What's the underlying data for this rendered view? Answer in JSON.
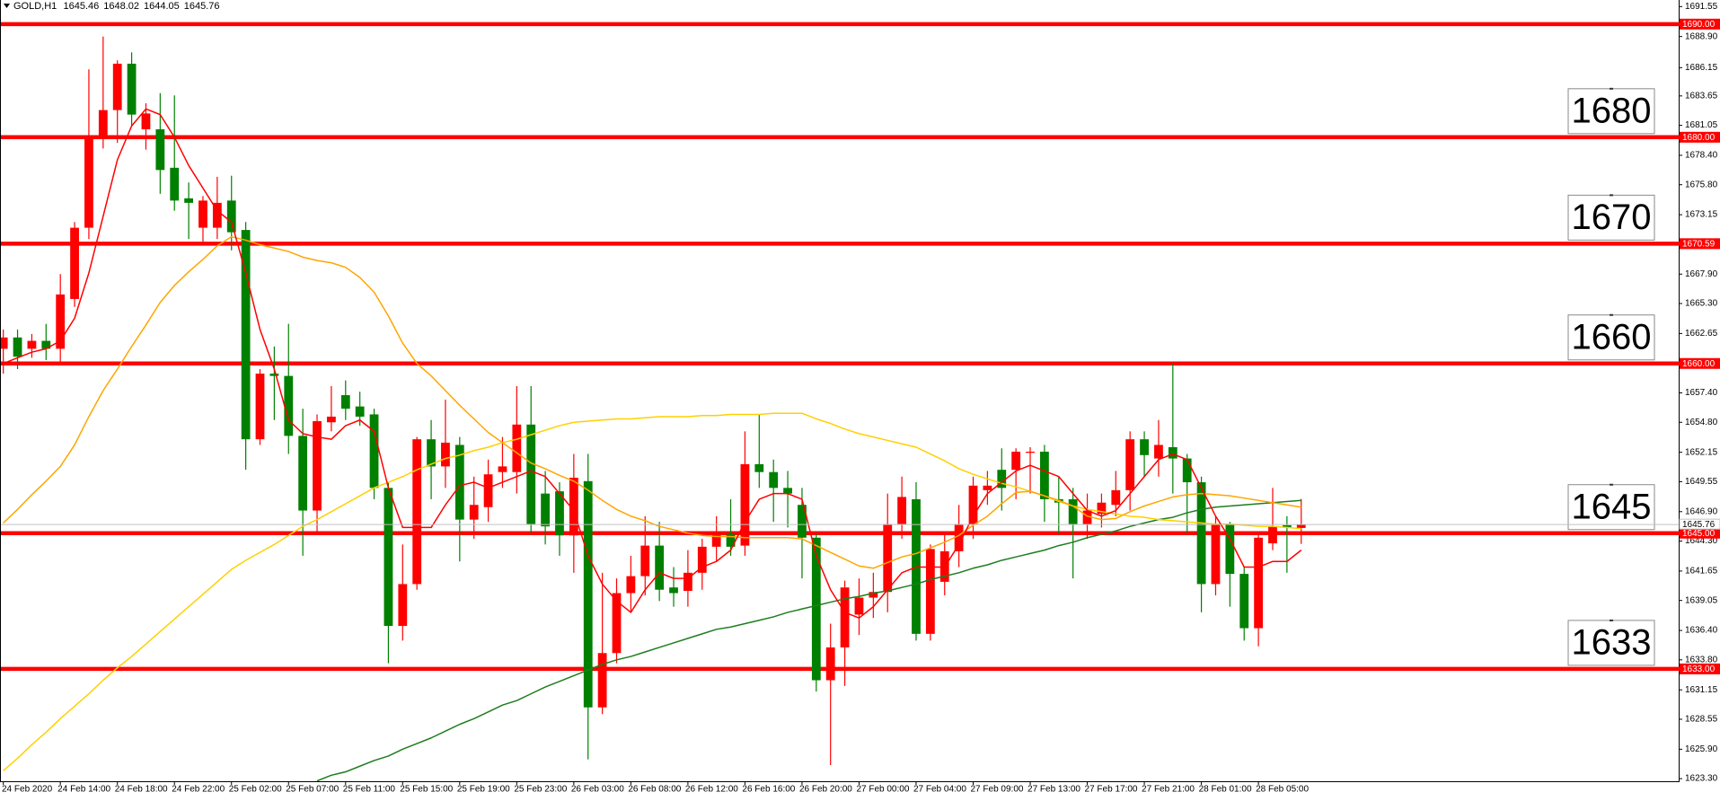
{
  "chart_data": {
    "type": "candlestick",
    "symbol": "GOLD,H1",
    "up_color": "#ff0000",
    "down_color": "#008000",
    "grid": false,
    "ylim": [
      1623.07,
      1692.13
    ],
    "yticks": [
      1691.55,
      {
        "value": 1688.9,
        "label": "1688.90"
      },
      1686.15,
      1683.65,
      1681.05,
      {
        "value": 1678.4,
        "label": "1678.40"
      },
      {
        "value": 1675.8,
        "label": "1675.80"
      },
      1673.15,
      {
        "value": 1667.9,
        "label": "1667.90"
      },
      {
        "value": 1665.3,
        "label": "1665.30"
      },
      1662.65,
      {
        "value": 1657.4,
        "label": "1657.40"
      },
      {
        "value": 1654.8,
        "label": "1654.80"
      },
      1652.15,
      1649.55,
      {
        "value": 1646.9,
        "label": "1646.90"
      },
      {
        "value": 1644.3,
        "label": "1644.30"
      },
      1641.65,
      1639.05,
      {
        "value": 1636.4,
        "label": "1636.40"
      },
      {
        "value": 1633.8,
        "label": "1633.80"
      },
      1631.15,
      1628.55,
      {
        "value": 1625.9,
        "label": "1625.90"
      },
      {
        "value": 1623.3,
        "label": "1623.30"
      }
    ],
    "levels": [
      {
        "value": 1690,
        "label": "1690.00",
        "color": "#ff0000"
      },
      {
        "value": 1680,
        "label": "1680.00",
        "note": "1680",
        "color": "#ff0000"
      },
      {
        "value": 1670.59,
        "label": "1670.59",
        "note": "1670",
        "color": "#ff0000"
      },
      {
        "value": 1660,
        "label": "1660.00",
        "note": "1660",
        "color": "#ff0000"
      },
      {
        "value": 1645,
        "label": "1645.00",
        "note": "1645",
        "color": "#ff0000"
      },
      {
        "value": 1633,
        "label": "1633.00",
        "note": "1633",
        "color": "#ff0000"
      }
    ],
    "categories": [
      "24 Feb 2020",
      null,
      null,
      null,
      "24 Feb 14:00",
      null,
      null,
      null,
      "24 Feb 18:00",
      null,
      null,
      null,
      "24 Feb 22:00",
      null,
      null,
      null,
      "25 Feb 02:00",
      null,
      null,
      null,
      "25 Feb 07:00",
      null,
      null,
      null,
      "25 Feb 11:00",
      null,
      null,
      null,
      "25 Feb 15:00",
      null,
      null,
      null,
      "25 Feb 19:00",
      null,
      null,
      null,
      "25 Feb 23:00",
      null,
      null,
      null,
      "26 Feb 03:00",
      null,
      null,
      null,
      "26 Feb 08:00",
      null,
      null,
      null,
      "26 Feb 12:00",
      null,
      null,
      null,
      "26 Feb 16:00",
      null,
      null,
      null,
      "26 Feb 20:00",
      null,
      null,
      null,
      "27 Feb 00:00",
      null,
      null,
      null,
      "27 Feb 04:00",
      null,
      null,
      null,
      "27 Feb 09:00",
      null,
      null,
      null,
      "27 Feb 13:00",
      null,
      null,
      null,
      "27 Feb 17:00",
      null,
      null,
      null,
      "27 Feb 21:00",
      null,
      null,
      null,
      "28 Feb 01:00",
      null,
      null,
      null,
      "28 Feb 05:00",
      null,
      null,
      null
    ],
    "open": [
      1661.3,
      1662.3,
      1661.3,
      1662.0,
      1661.3,
      1665.7,
      1672.0,
      1680.0,
      1682.4,
      1686.5,
      1680.7,
      1680.7,
      1677.3,
      1674.6,
      1672.0,
      1672.0,
      1674.4,
      1671.8,
      1653.3,
      1659.1,
      1658.9,
      1653.6,
      1647.0,
      1654.8,
      1657.2,
      1656.2,
      1655.5,
      1649.0,
      1636.8,
      1640.5,
      1653.3,
      1650.9,
      1652.8,
      1646.2,
      1647.3,
      1650.4,
      1650.4,
      1654.6,
      1648.5,
      1648.7,
      1644.8,
      1649.6,
      1629.6,
      1634.4,
      1639.7,
      1641.2,
      1643.9,
      1640.2,
      1639.9,
      1641.5,
      1643.8,
      1644.9,
      1643.9,
      1651.1,
      1650.4,
      1649.0,
      1647.5,
      1644.6,
      1632.0,
      1634.9,
      1637.8,
      1639.3,
      1639.8,
      1645.8,
      1648.0,
      1636.1,
      1640.7,
      1643.4,
      1645.8,
      1648.8,
      1650.6,
      1650.6,
      1652.1,
      1652.2,
      1648.0,
      1648.0,
      1645.8,
      1646.7,
      1647.5,
      1648.8,
      1653.3,
      1651.6,
      1652.6,
      1651.6,
      1649.5,
      1640.5,
      1645.8,
      1641.4,
      1636.6,
      1644.1,
      1645.7,
      1645.46
    ],
    "high": [
      1663.0,
      1663.0,
      1662.6,
      1663.5,
      1667.9,
      1672.5,
      1686.0,
      1688.9,
      1686.8,
      1687.5,
      1683.0,
      1683.9,
      1683.7,
      1676.0,
      1674.8,
      1676.5,
      1676.6,
      1672.5,
      1659.5,
      1661.5,
      1663.5,
      1656.0,
      1655.5,
      1658.0,
      1658.5,
      1657.5,
      1656.0,
      1649.5,
      1644.0,
      1653.5,
      1655.0,
      1656.8,
      1653.5,
      1650.0,
      1651.5,
      1653.5,
      1658.0,
      1658.0,
      1650.5,
      1649.5,
      1652.0,
      1652.0,
      1641.5,
      1641.0,
      1643.0,
      1646.5,
      1646.0,
      1642.0,
      1643.5,
      1644.5,
      1646.5,
      1648.0,
      1654.0,
      1655.5,
      1651.5,
      1650.5,
      1649.0,
      1645.0,
      1637.0,
      1640.8,
      1641.0,
      1641.5,
      1648.5,
      1650.0,
      1649.5,
      1644.0,
      1645.0,
      1647.5,
      1650.0,
      1650.5,
      1652.5,
      1652.5,
      1652.6,
      1652.8,
      1650.0,
      1649.0,
      1648.5,
      1648.5,
      1650.5,
      1654.0,
      1654.0,
      1655.0,
      1660.0,
      1652.0,
      1650.0,
      1646.5,
      1646.0,
      1642.0,
      1645.0,
      1649.0,
      1646.5,
      1648.02
    ],
    "low": [
      1659.1,
      1659.5,
      1660.5,
      1660.3,
      1660.0,
      1665.0,
      1671.0,
      1679.0,
      1679.5,
      1681.0,
      1678.9,
      1675.0,
      1673.5,
      1671.0,
      1670.5,
      1671.0,
      1670.0,
      1650.6,
      1652.8,
      1655.0,
      1652.0,
      1643.0,
      1645.0,
      1654.0,
      1655.0,
      1654.5,
      1648.0,
      1633.5,
      1635.5,
      1640.0,
      1648.0,
      1649.0,
      1642.5,
      1644.5,
      1646.0,
      1649.0,
      1648.5,
      1645.0,
      1644.0,
      1643.0,
      1641.5,
      1625.0,
      1629.0,
      1633.5,
      1638.0,
      1639.5,
      1639.0,
      1638.5,
      1638.5,
      1640.0,
      1642.5,
      1643.0,
      1643.0,
      1649.0,
      1646.0,
      1645.5,
      1641.0,
      1631.0,
      1624.5,
      1631.5,
      1636.0,
      1637.5,
      1638.0,
      1644.5,
      1635.5,
      1635.5,
      1639.5,
      1642.0,
      1644.5,
      1647.5,
      1647.0,
      1648.0,
      1648.5,
      1646.0,
      1645.0,
      1641.0,
      1644.5,
      1645.5,
      1646.5,
      1647.0,
      1650.0,
      1650.0,
      1648.5,
      1645.0,
      1638.0,
      1639.5,
      1638.5,
      1635.5,
      1635.0,
      1643.5,
      1641.5,
      1644.05
    ],
    "close": [
      1662.3,
      1660.6,
      1662.0,
      1661.3,
      1666.1,
      1672.0,
      1680.1,
      1682.4,
      1686.5,
      1682.0,
      1682.1,
      1677.1,
      1674.4,
      1674.2,
      1674.4,
      1674.2,
      1671.6,
      1653.3,
      1659.1,
      1658.9,
      1653.6,
      1647.0,
      1654.9,
      1655.3,
      1656.0,
      1655.3,
      1649.0,
      1636.8,
      1640.5,
      1653.3,
      1650.9,
      1653.0,
      1646.2,
      1647.5,
      1650.2,
      1650.9,
      1654.6,
      1645.8,
      1645.6,
      1644.8,
      1649.9,
      1629.6,
      1634.4,
      1639.7,
      1641.2,
      1643.9,
      1640.0,
      1639.7,
      1641.5,
      1643.8,
      1644.9,
      1643.8,
      1651.1,
      1650.4,
      1649.0,
      1648.5,
      1644.6,
      1632.0,
      1634.9,
      1640.2,
      1639.3,
      1639.8,
      1645.8,
      1648.2,
      1636.1,
      1643.6,
      1643.4,
      1645.8,
      1649.2,
      1649.2,
      1649.0,
      1652.2,
      1652.2,
      1648.0,
      1647.7,
      1645.8,
      1647.0,
      1647.7,
      1648.8,
      1653.3,
      1651.9,
      1652.8,
      1651.6,
      1649.5,
      1640.5,
      1645.8,
      1641.4,
      1636.6,
      1644.6,
      1645.6,
      1645.5,
      1645.76
    ],
    "series": [
      {
        "color": "#1e7d1e",
        "values": [
          null,
          null,
          null,
          null,
          null,
          null,
          null,
          null,
          null,
          null,
          null,
          null,
          null,
          null,
          null,
          null,
          null,
          null,
          null,
          null,
          null,
          null,
          1623.1,
          1623.6,
          1623.9,
          1624.4,
          1624.9,
          1625.3,
          1625.9,
          1626.4,
          1626.9,
          1627.5,
          1628.1,
          1628.6,
          1629.2,
          1629.8,
          1630.2,
          1630.8,
          1631.4,
          1631.9,
          1632.4,
          1632.9,
          1633.4,
          1633.8,
          1634.1,
          1634.5,
          1634.9,
          1635.3,
          1635.7,
          1636.1,
          1636.5,
          1636.7,
          1637.0,
          1637.3,
          1637.6,
          1638.0,
          1638.3,
          1638.6,
          1638.9,
          1639.2,
          1639.4,
          1639.7,
          1639.9,
          1640.2,
          1640.5,
          1640.9,
          1641.2,
          1641.5,
          1641.9,
          1642.2,
          1642.6,
          1642.9,
          1643.2,
          1643.5,
          1643.9,
          1644.2,
          1644.6,
          1644.9,
          1645.2,
          1645.6,
          1645.9,
          1646.2,
          1646.4,
          1646.8,
          1647.1,
          1647.3,
          1647.4,
          1647.5,
          1647.6,
          1647.7,
          1647.8,
          1647.9
        ]
      },
      {
        "color": "#ffd000",
        "values": [
          1624.0,
          1625.1,
          1626.3,
          1627.4,
          1628.6,
          1629.7,
          1630.8,
          1632.0,
          1633.1,
          1634.1,
          1635.2,
          1636.3,
          1637.4,
          1638.5,
          1639.6,
          1640.7,
          1641.8,
          1642.6,
          1643.3,
          1644.0,
          1644.8,
          1645.6,
          1646.2,
          1646.9,
          1647.6,
          1648.3,
          1649.0,
          1649.5,
          1650.0,
          1650.6,
          1651.1,
          1651.6,
          1651.9,
          1652.3,
          1652.6,
          1653.0,
          1653.3,
          1653.7,
          1654.1,
          1654.5,
          1654.8,
          1654.9,
          1655.0,
          1655.1,
          1655.1,
          1655.2,
          1655.3,
          1655.3,
          1655.3,
          1655.4,
          1655.4,
          1655.5,
          1655.5,
          1655.5,
          1655.6,
          1655.6,
          1655.6,
          1655.1,
          1654.7,
          1654.2,
          1653.8,
          1653.5,
          1653.2,
          1652.9,
          1652.6,
          1652.0,
          1651.4,
          1650.7,
          1650.2,
          1649.8,
          1649.4,
          1649.1,
          1648.7,
          1648.3,
          1647.8,
          1647.4,
          1647.1,
          1646.9,
          1646.7,
          1646.5,
          1646.4,
          1646.2,
          1646.1,
          1646.0,
          1645.9,
          1645.8,
          1645.8,
          1645.7,
          1645.6,
          1645.6,
          1645.5,
          1645.4
        ]
      },
      {
        "color": "#ffa500",
        "values": [
          1645.9,
          1647.1,
          1648.4,
          1649.6,
          1650.9,
          1652.8,
          1655.3,
          1657.6,
          1659.5,
          1661.5,
          1663.4,
          1665.4,
          1666.9,
          1668.1,
          1669.2,
          1670.4,
          1671.2,
          1670.9,
          1670.5,
          1670.2,
          1669.9,
          1669.4,
          1669.1,
          1668.9,
          1668.5,
          1667.6,
          1666.3,
          1664.2,
          1661.8,
          1660.0,
          1658.9,
          1657.6,
          1656.3,
          1655.1,
          1653.9,
          1653.0,
          1652.1,
          1651.2,
          1650.7,
          1650.1,
          1649.6,
          1648.8,
          1647.9,
          1647.1,
          1646.5,
          1646.1,
          1645.6,
          1645.3,
          1645.0,
          1644.8,
          1644.7,
          1644.7,
          1644.6,
          1644.6,
          1644.6,
          1644.6,
          1644.5,
          1643.9,
          1643.3,
          1642.7,
          1642.1,
          1641.9,
          1642.4,
          1642.9,
          1643.2,
          1643.7,
          1644.2,
          1644.8,
          1645.7,
          1646.5,
          1647.6,
          1648.6,
          1648.7,
          1648.3,
          1647.9,
          1647.4,
          1646.5,
          1646.2,
          1646.3,
          1646.9,
          1647.4,
          1647.8,
          1648.2,
          1648.4,
          1648.5,
          1648.4,
          1648.3,
          1648.1,
          1647.9,
          1647.7,
          1647.5,
          1647.3
        ]
      },
      {
        "color": "#ff0000",
        "values": [
          1660.0,
          1660.5,
          1661.0,
          1661.3,
          1662.0,
          1664.0,
          1668.0,
          1673.0,
          1678.0,
          1681.0,
          1682.5,
          1682.0,
          1680.0,
          1677.5,
          1675.5,
          1673.5,
          1672.5,
          1668.0,
          1663.0,
          1659.5,
          1655.0,
          1653.8,
          1653.5,
          1653.3,
          1654.5,
          1655.0,
          1654.0,
          1649.0,
          1645.5,
          1645.5,
          1645.5,
          1647.5,
          1649.2,
          1649.5,
          1649.0,
          1649.5,
          1650.0,
          1650.5,
          1650.0,
          1648.5,
          1647.0,
          1643.0,
          1640.5,
          1639.0,
          1638.0,
          1640.0,
          1641.5,
          1641.0,
          1641.0,
          1642.0,
          1642.5,
          1643.5,
          1646.0,
          1648.0,
          1648.5,
          1648.5,
          1648.0,
          1643.0,
          1640.0,
          1638.0,
          1637.5,
          1638.5,
          1640.0,
          1641.5,
          1642.0,
          1642.0,
          1642.0,
          1644.0,
          1646.5,
          1648.5,
          1649.5,
          1650.5,
          1651.0,
          1650.5,
          1650.0,
          1648.5,
          1647.0,
          1646.5,
          1647.0,
          1648.5,
          1650.0,
          1651.5,
          1652.0,
          1651.5,
          1649.0,
          1646.5,
          1644.5,
          1642.0,
          1642.0,
          1642.5,
          1642.5,
          1643.5
        ]
      }
    ],
    "current_color": "#c0c0c0"
  }
}
